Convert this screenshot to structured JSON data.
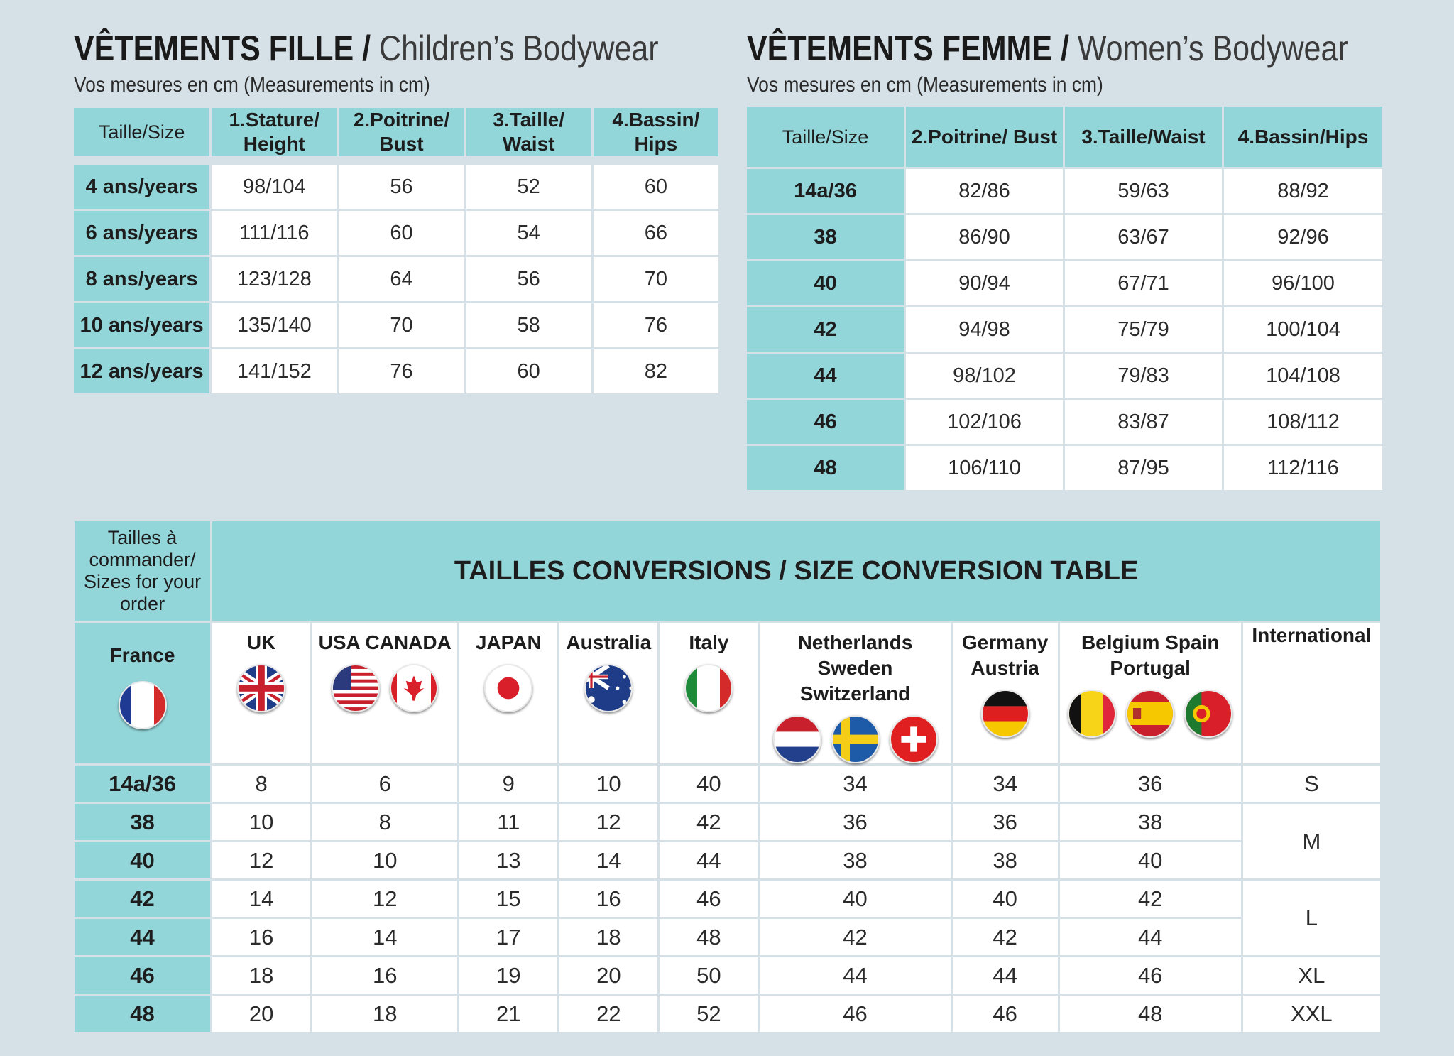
{
  "children": {
    "title_fr": "VÊTEMENTS FILLE /",
    "title_en": "Children’s Bodywear",
    "subtitle": "Vos mesures en cm (Measurements in cm)",
    "headers": [
      "Taille/Size",
      "1.Stature/ Height",
      "2.Poitrine/ Bust",
      "3.Taille/ Waist",
      "4.Bassin/ Hips"
    ],
    "rows": [
      [
        "4 ans/years",
        "98/104",
        "56",
        "52",
        "60"
      ],
      [
        "6 ans/years",
        "111/116",
        "60",
        "54",
        "66"
      ],
      [
        "8 ans/years",
        "123/128",
        "64",
        "56",
        "70"
      ],
      [
        "10 ans/years",
        "135/140",
        "70",
        "58",
        "76"
      ],
      [
        "12 ans/years",
        "141/152",
        "76",
        "60",
        "82"
      ]
    ]
  },
  "women": {
    "title_fr": "VÊTEMENTS FEMME /",
    "title_en": "Women’s Bodywear",
    "subtitle": "Vos mesures en cm (Measurements in cm)",
    "headers": [
      "Taille/Size",
      "2.Poitrine/ Bust",
      "3.Taille/Waist",
      "4.Bassin/Hips"
    ],
    "rows": [
      [
        "14a/36",
        "82/86",
        "59/63",
        "88/92"
      ],
      [
        "38",
        "86/90",
        "63/67",
        "92/96"
      ],
      [
        "40",
        "90/94",
        "67/71",
        "96/100"
      ],
      [
        "42",
        "94/98",
        "75/79",
        "100/104"
      ],
      [
        "44",
        "98/102",
        "79/83",
        "104/108"
      ],
      [
        "46",
        "102/106",
        "83/87",
        "108/112"
      ],
      [
        "48",
        "106/110",
        "87/95",
        "112/116"
      ]
    ]
  },
  "conversion": {
    "corner_label": "Tailles à commander/ Sizes for your order",
    "title": "TAILLES CONVERSIONS / SIZE CONVERSION TABLE",
    "countries": [
      {
        "name": "France",
        "flags": [
          "flag-france-icon"
        ]
      },
      {
        "name": "UK",
        "flags": [
          "flag-uk-icon"
        ]
      },
      {
        "name": "USA CANADA",
        "flags": [
          "flag-usa-icon",
          "flag-canada-icon"
        ]
      },
      {
        "name": "JAPAN",
        "flags": [
          "flag-japan-icon"
        ]
      },
      {
        "name": "Australia",
        "flags": [
          "flag-australia-icon"
        ]
      },
      {
        "name": "Italy",
        "flags": [
          "flag-italy-icon"
        ]
      },
      {
        "name": "Netherlands Sweden Switzerland",
        "flags": [
          "flag-netherlands-icon",
          "flag-sweden-icon",
          "flag-switzerland-icon"
        ]
      },
      {
        "name": "Germany Austria",
        "flags": [
          "flag-germany-icon"
        ]
      },
      {
        "name": "Belgium Spain Portugal",
        "flags": [
          "flag-belgium-icon",
          "flag-spain-icon",
          "flag-portugal-icon"
        ]
      },
      {
        "name": "International",
        "flags": []
      }
    ],
    "rows": [
      [
        "14a/36",
        "8",
        "6",
        "9",
        "10",
        "40",
        "34",
        "34",
        "36"
      ],
      [
        "38",
        "10",
        "8",
        "11",
        "12",
        "42",
        "36",
        "36",
        "38"
      ],
      [
        "40",
        "12",
        "10",
        "13",
        "14",
        "44",
        "38",
        "38",
        "40"
      ],
      [
        "42",
        "14",
        "12",
        "15",
        "16",
        "46",
        "40",
        "40",
        "42"
      ],
      [
        "44",
        "16",
        "14",
        "17",
        "18",
        "48",
        "42",
        "42",
        "44"
      ],
      [
        "46",
        "18",
        "16",
        "19",
        "20",
        "50",
        "44",
        "44",
        "46"
      ],
      [
        "48",
        "20",
        "18",
        "21",
        "22",
        "52",
        "46",
        "46",
        "48"
      ]
    ],
    "international": [
      {
        "label": "S",
        "span": 1
      },
      {
        "label": "M",
        "span": 2
      },
      {
        "label": "L",
        "span": 2
      },
      {
        "label": "XL",
        "span": 1
      },
      {
        "label": "XXL",
        "span": 1
      }
    ]
  }
}
